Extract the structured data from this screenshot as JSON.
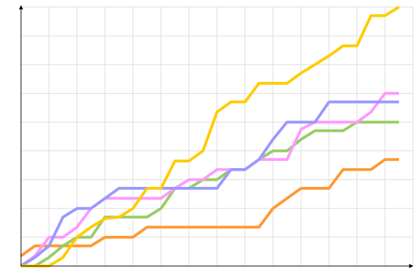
{
  "chart_data": {
    "type": "line",
    "x": [
      0,
      1,
      2,
      3,
      4,
      5,
      6,
      7,
      8,
      9,
      10,
      11,
      12,
      13,
      14,
      15,
      16,
      17,
      18,
      19,
      20,
      21,
      22,
      23,
      24,
      25,
      26,
      27
    ],
    "series": [
      {
        "color": "#ff9933",
        "values": [
          0.35,
          0.7,
          0.7,
          0.7,
          0.7,
          0.7,
          1,
          1,
          1,
          1.35,
          1.35,
          1.35,
          1.35,
          1.35,
          1.35,
          1.35,
          1.35,
          1.35,
          2,
          2.35,
          2.7,
          2.7,
          2.7,
          3.35,
          3.35,
          3.35,
          3.7,
          3.7
        ]
      },
      {
        "color": "#99cc66",
        "values": [
          0,
          0,
          0.3,
          0.7,
          1,
          1,
          1.7,
          1.7,
          1.7,
          1.7,
          2,
          2.7,
          2.7,
          3,
          3,
          3.35,
          3.35,
          3.7,
          4,
          4,
          4.4,
          4.7,
          4.7,
          4.7,
          5,
          5,
          5,
          5
        ]
      },
      {
        "color": "#ff99ff",
        "values": [
          0,
          0.35,
          1,
          1,
          1.35,
          2,
          2.35,
          2.35,
          2.35,
          2.35,
          2.35,
          2.7,
          3,
          3,
          3.35,
          3.35,
          3.35,
          3.7,
          3.7,
          3.7,
          4.75,
          5,
          5,
          5,
          5,
          5.35,
          6,
          6
        ]
      },
      {
        "color": "#9999ff",
        "values": [
          0,
          0.3,
          0.7,
          1.7,
          2,
          2,
          2.35,
          2.7,
          2.7,
          2.7,
          2.7,
          2.7,
          2.7,
          2.7,
          2.7,
          3.35,
          3.35,
          3.7,
          4.4,
          5,
          5,
          5,
          5.7,
          5.7,
          5.7,
          5.7,
          5.7,
          5.7
        ]
      },
      {
        "color": "#ffcc00",
        "values": [
          0,
          0,
          0,
          0.3,
          1,
          1.35,
          1.65,
          1.7,
          2,
          2.7,
          2.7,
          3.65,
          3.65,
          4,
          5.35,
          5.7,
          5.7,
          6.35,
          6.35,
          6.35,
          6.7,
          7,
          7.3,
          7.65,
          7.65,
          8.7,
          8.7,
          9
        ]
      }
    ],
    "xlim": [
      0,
      28
    ],
    "ylim": [
      0,
      9
    ],
    "xticks": [
      0,
      2,
      4,
      6,
      8,
      10,
      12,
      14,
      16,
      18,
      20,
      22,
      24,
      26,
      28
    ],
    "yticks": [
      0,
      1,
      2,
      3,
      4,
      5,
      6,
      7,
      8,
      9
    ],
    "grid": true
  }
}
